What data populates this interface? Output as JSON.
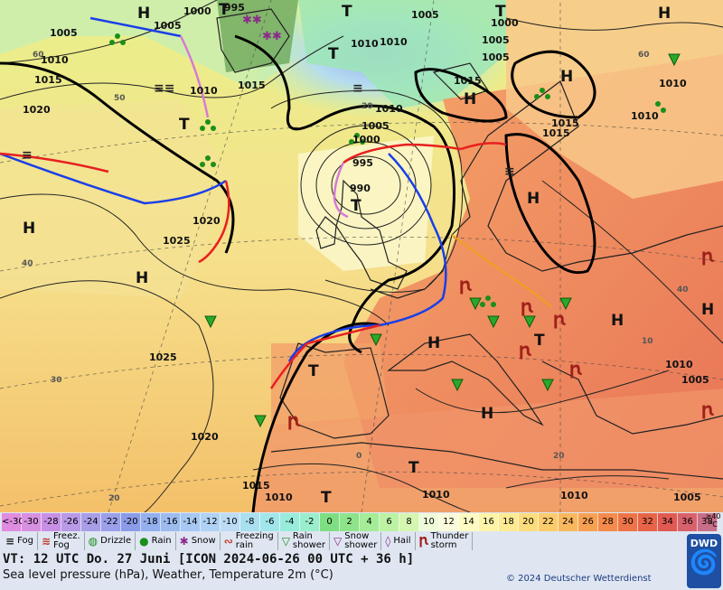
{
  "map": {
    "pressure_labels": [
      {
        "t": "1000"
      },
      {
        "t": "995"
      },
      {
        "t": "1005"
      },
      {
        "t": "1005"
      },
      {
        "t": "1010"
      },
      {
        "t": "1015"
      },
      {
        "t": "1020"
      },
      {
        "t": "1010"
      },
      {
        "t": "1015"
      },
      {
        "t": "1010"
      },
      {
        "t": "1005"
      },
      {
        "t": "1010"
      },
      {
        "t": "1015"
      },
      {
        "t": "1010"
      },
      {
        "t": "995"
      },
      {
        "t": "990"
      },
      {
        "t": "1000"
      },
      {
        "t": "1005"
      },
      {
        "t": "1020"
      },
      {
        "t": "1025"
      },
      {
        "t": "1025"
      },
      {
        "t": "1020"
      },
      {
        "t": "1015"
      },
      {
        "t": "1010"
      },
      {
        "t": "1010"
      },
      {
        "t": "1010"
      },
      {
        "t": "1005"
      },
      {
        "t": "1015"
      },
      {
        "t": "1010"
      },
      {
        "t": "1005"
      },
      {
        "t": "1000"
      },
      {
        "t": "1005"
      },
      {
        "t": "1010"
      },
      {
        "t": "1005"
      },
      {
        "t": "1015"
      },
      {
        "t": "1010"
      }
    ],
    "centers": [
      {
        "t": "H"
      },
      {
        "t": "H"
      },
      {
        "t": "H"
      },
      {
        "t": "H"
      },
      {
        "t": "H"
      },
      {
        "t": "H"
      },
      {
        "t": "H"
      },
      {
        "t": "H"
      },
      {
        "t": "H"
      },
      {
        "t": "H"
      },
      {
        "t": "H"
      },
      {
        "t": "T"
      },
      {
        "t": "T"
      },
      {
        "t": "T"
      },
      {
        "t": "T"
      },
      {
        "t": "T"
      },
      {
        "t": "T"
      },
      {
        "t": "T"
      },
      {
        "t": "T"
      },
      {
        "t": "T"
      },
      {
        "t": "T"
      }
    ],
    "temp_labels": [
      {
        "t": "60"
      },
      {
        "t": "50"
      },
      {
        "t": "40"
      },
      {
        "t": "30"
      },
      {
        "t": "20"
      },
      {
        "t": "0"
      },
      {
        "t": "20"
      },
      {
        "t": "40"
      },
      {
        "t": "60"
      },
      {
        "t": "10"
      },
      {
        "t": "20"
      }
    ]
  },
  "legend": {
    "scale": [
      {
        "label": "<-30",
        "color": "#e08ce0"
      },
      {
        "label": "-30",
        "color": "#d890e0"
      },
      {
        "label": "-28",
        "color": "#c890e4"
      },
      {
        "label": "-26",
        "color": "#b89ae6"
      },
      {
        "label": "-24",
        "color": "#a89ee8"
      },
      {
        "label": "-22",
        "color": "#9aa0ea"
      },
      {
        "label": "-20",
        "color": "#8a9ce8"
      },
      {
        "label": "-18",
        "color": "#94b0ee"
      },
      {
        "label": "-16",
        "color": "#9cbcf0"
      },
      {
        "label": "-14",
        "color": "#a6c8f2"
      },
      {
        "label": "-12",
        "color": "#b0d2f4"
      },
      {
        "label": "-10",
        "color": "#bcdcf6"
      },
      {
        "label": "-8",
        "color": "#a8e0f0"
      },
      {
        "label": "-6",
        "color": "#a0e6ea"
      },
      {
        "label": "-4",
        "color": "#98ecdc"
      },
      {
        "label": "-2",
        "color": "#9aeecc"
      },
      {
        "label": "0",
        "color": "#7ede82"
      },
      {
        "label": "2",
        "color": "#8ee48a"
      },
      {
        "label": "4",
        "color": "#a4ec98"
      },
      {
        "label": "6",
        "color": "#bcf2a4"
      },
      {
        "label": "8",
        "color": "#d4f6b0"
      },
      {
        "label": "10",
        "color": "#eefad8"
      },
      {
        "label": "12",
        "color": "#fafadc"
      },
      {
        "label": "14",
        "color": "#fdfac2"
      },
      {
        "label": "16",
        "color": "#fdf4a8"
      },
      {
        "label": "18",
        "color": "#fdea92"
      },
      {
        "label": "20",
        "color": "#fcdc7c"
      },
      {
        "label": "22",
        "color": "#fccc6c"
      },
      {
        "label": "24",
        "color": "#fab85e"
      },
      {
        "label": "26",
        "color": "#f8a052"
      },
      {
        "label": "28",
        "color": "#f48a4c"
      },
      {
        "label": "30",
        "color": "#ee7448"
      },
      {
        "label": "32",
        "color": "#e86448"
      },
      {
        "label": "34",
        "color": "#e05a52"
      },
      {
        "label": "36",
        "color": "#d8626c"
      },
      {
        "label": "38",
        "color": "#c86e88"
      }
    ],
    "unit_top": "≥40",
    "unit_bottom": "°C",
    "symbols": [
      {
        "icon": "≡",
        "label": "Fog",
        "color": "#222"
      },
      {
        "icon": "≋",
        "label": "Freez.\nFog",
        "color": "#c0392b"
      },
      {
        "icon": "◍",
        "label": "Drizzle",
        "color": "#1a8f1a"
      },
      {
        "icon": "●",
        "label": "Rain",
        "color": "#1a8f1a"
      },
      {
        "icon": "✱",
        "label": "Snow",
        "color": "#8b2a8b"
      },
      {
        "icon": "∾",
        "label": "Freezing\nrain",
        "color": "#c0392b"
      },
      {
        "icon": "▽",
        "label": "Rain\nshower",
        "color": "#1a8f1a"
      },
      {
        "icon": "▽",
        "label": "Snow\nshower",
        "color": "#8b2a8b"
      },
      {
        "icon": "◊",
        "label": "Hail",
        "color": "#8b2a8b"
      },
      {
        "icon": "Ꞃ",
        "label": "Thunder\nstorm",
        "color": "#a0201a"
      }
    ],
    "valid_time": "VT: 12 UTC Do.  27 Juni [ICON 2024-06-26  00 UTC + 36 h]",
    "description": "Sea level pressure (hPa), Weather, Temperature 2m (°C)",
    "copyright": "© 2024 Deutscher Wetterdienst",
    "logo_text": "DWD"
  }
}
